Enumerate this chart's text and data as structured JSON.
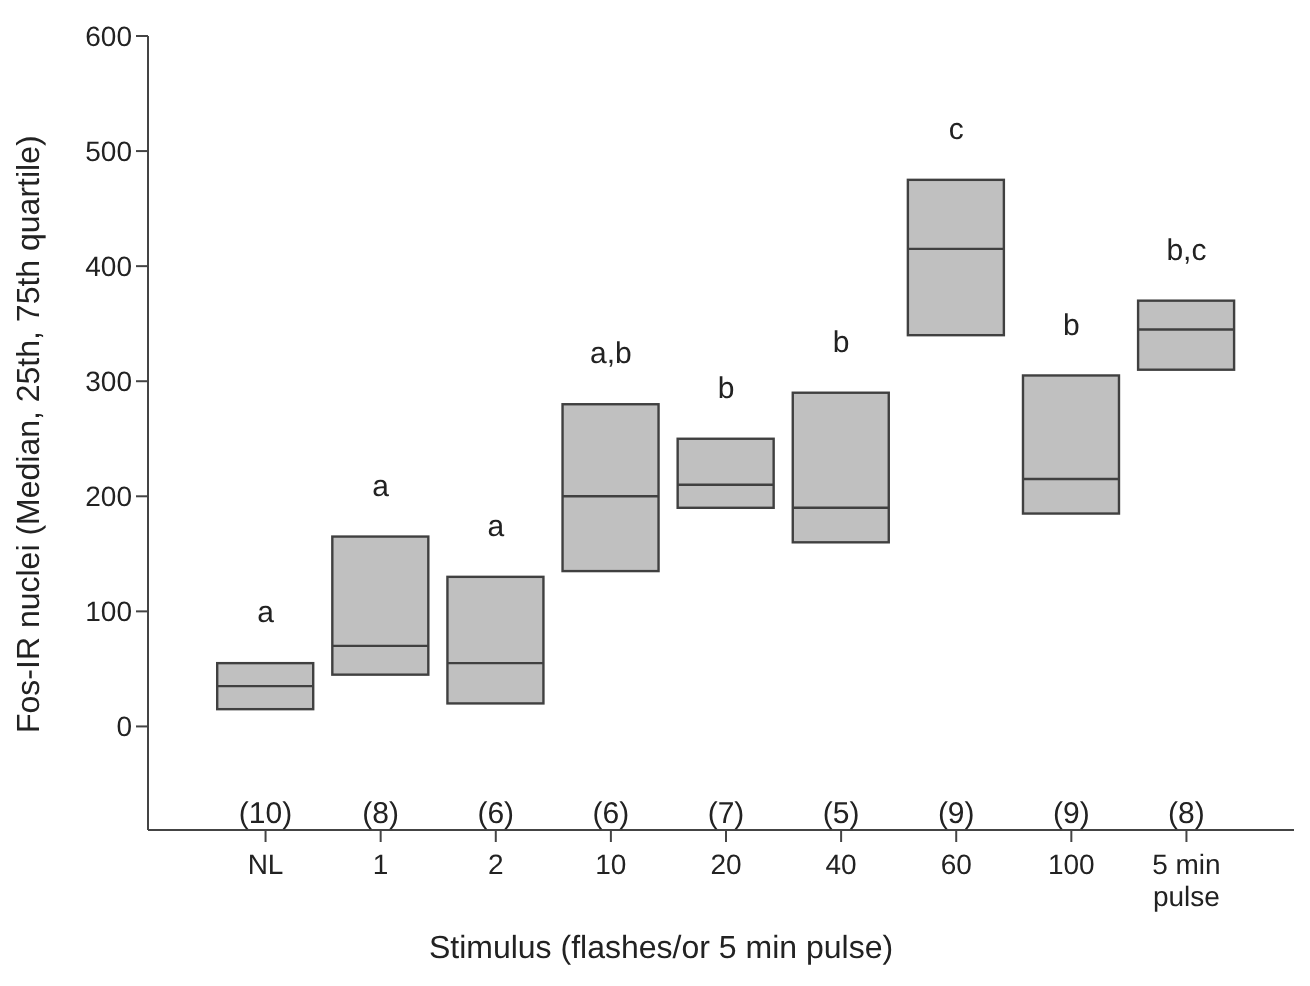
{
  "chart_data": {
    "type": "box",
    "xlabel": "Stimulus (flashes/or 5 min pulse)",
    "ylabel": "Fos-IR nuclei (Median, 25th, 75th quartile)",
    "categories": [
      "NL",
      "1",
      "2",
      "10",
      "20",
      "40",
      "60",
      "100",
      "5 min pulse"
    ],
    "color": "#c0c0c0",
    "boxes": [
      {
        "low": 15,
        "q1": 15,
        "median": 35,
        "q3": 55,
        "high": 55
      },
      {
        "low": 45,
        "q1": 45,
        "median": 70,
        "q3": 165,
        "high": 165
      },
      {
        "low": 20,
        "q1": 20,
        "median": 55,
        "q3": 130,
        "high": 130
      },
      {
        "low": 135,
        "q1": 135,
        "median": 200,
        "q3": 280,
        "high": 280
      },
      {
        "low": 190,
        "q1": 190,
        "median": 210,
        "q3": 250,
        "high": 250
      },
      {
        "low": 160,
        "q1": 160,
        "median": 190,
        "q3": 290,
        "high": 290
      },
      {
        "low": 340,
        "q1": 340,
        "median": 415,
        "q3": 475,
        "high": 475
      },
      {
        "low": 185,
        "q1": 185,
        "median": 215,
        "q3": 305,
        "high": 305
      },
      {
        "low": 310,
        "q1": 310,
        "median": 345,
        "q3": 370,
        "high": 370
      }
    ],
    "ylim": [
      -90,
      600
    ],
    "yticks": [
      0,
      100,
      200,
      300,
      400,
      500,
      600
    ],
    "grid": false,
    "legend": false,
    "annotations": [
      "a",
      "a",
      "a",
      "a,b",
      "b",
      "b",
      "c",
      "b",
      "b,c",
      "(10)",
      "(8)",
      "(6)",
      "(6)",
      "(7)",
      "(5)",
      "(9)",
      "(9)",
      "(8)"
    ]
  }
}
